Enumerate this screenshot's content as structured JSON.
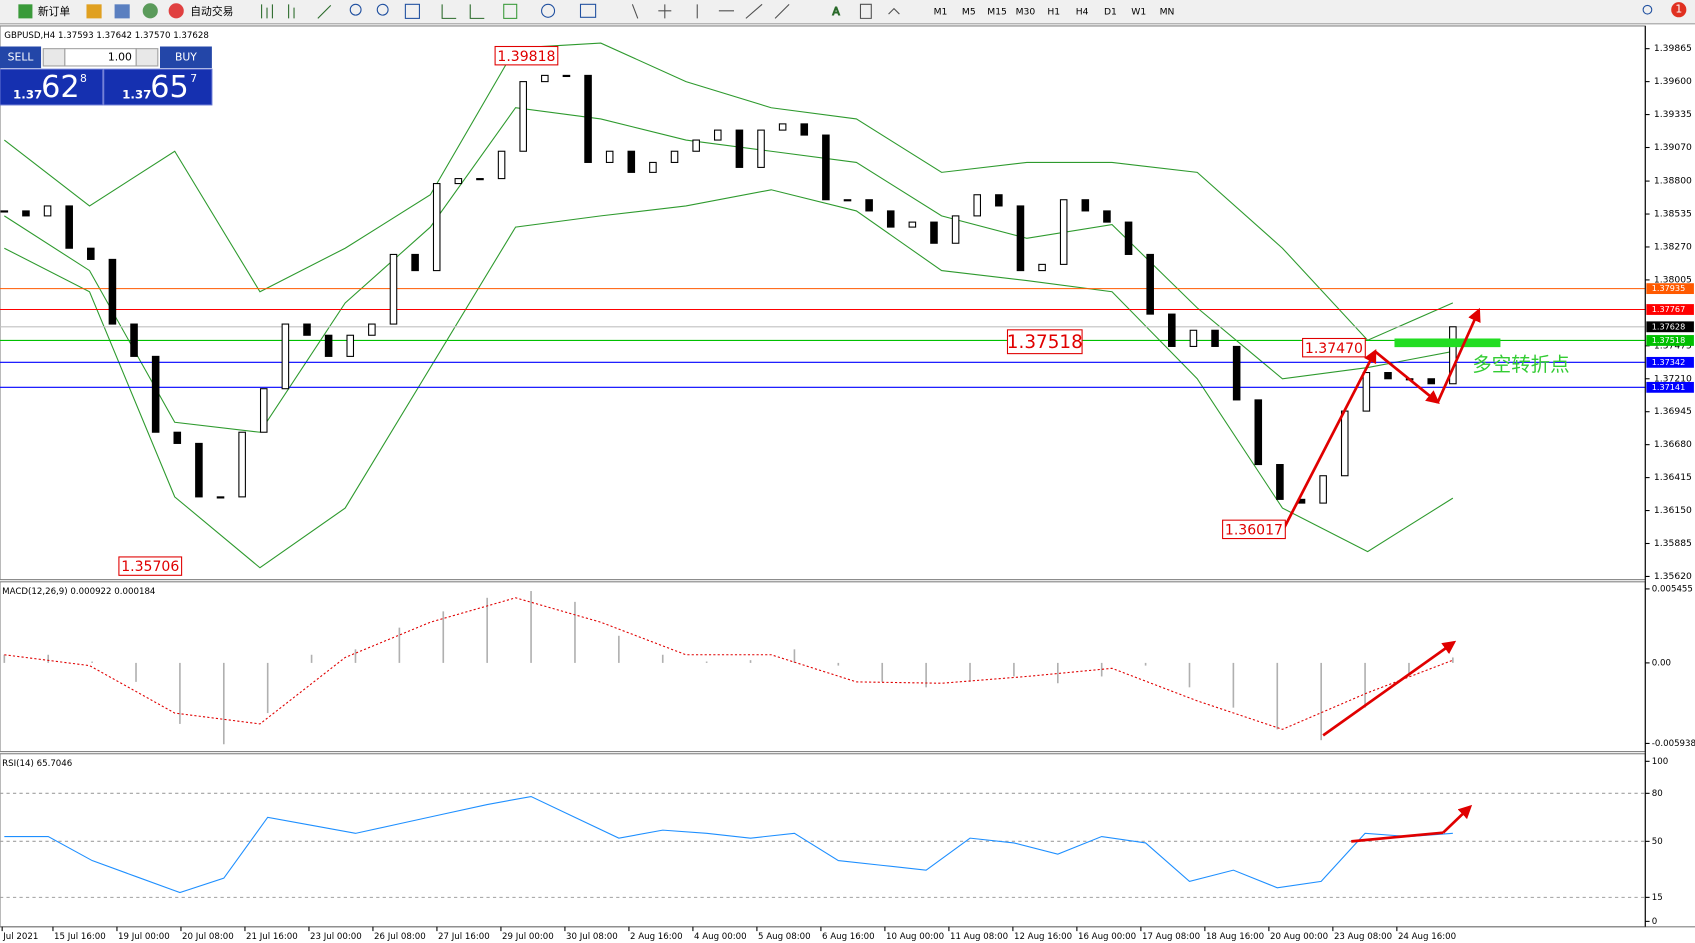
{
  "toolbar": {
    "new_order": "新订单",
    "auto_trading": "自动交易",
    "timeframes": [
      "M1",
      "M5",
      "M15",
      "M30",
      "H1",
      "H4",
      "D1",
      "W1",
      "MN"
    ],
    "badge": "1"
  },
  "trade_panel": {
    "sell": "SELL",
    "buy": "BUY",
    "lot": "1.00",
    "sell_big": "1.37",
    "sell_pips": "62",
    "sell_point": "8",
    "buy_big": "1.37",
    "buy_pips": "65",
    "buy_point": "7"
  },
  "chart_data": {
    "type": "candlestick",
    "title": "GBPUSD,H4  1.37593 1.37642 1.37570 1.37628",
    "close": [
      1.3856,
      1.3852,
      1.386,
      1.3826,
      1.3817,
      1.3765,
      1.3739,
      1.3678,
      1.3669,
      1.3626,
      1.3626,
      1.3678,
      1.3713,
      1.3765,
      1.3756,
      1.3739,
      1.3756,
      1.3765,
      1.3821,
      1.3808,
      1.3878,
      1.3882,
      1.3882,
      1.3904,
      1.396,
      1.3965,
      1.3965,
      1.3895,
      1.3904,
      1.3887,
      1.3895,
      1.3904,
      1.3913,
      1.3921,
      1.3891,
      1.3921,
      1.3926,
      1.3917,
      1.3865,
      1.3865,
      1.3856,
      1.3843,
      1.3847,
      1.383,
      1.3852,
      1.3869,
      1.386,
      1.3808,
      1.3813,
      1.3865,
      1.3856,
      1.3847,
      1.3821,
      1.3773,
      1.3747,
      1.376,
      1.3747,
      1.3704,
      1.3652,
      1.3624,
      1.3621,
      1.3643,
      1.3695,
      1.3726,
      1.3721,
      1.3721,
      1.3717,
      1.37628
    ],
    "up_color": "#ffffff",
    "down_color": "#000000",
    "ylim": [
      1.35603,
      1.40039
    ],
    "yticks": [
      1.39865,
      {
        "value": 1.396,
        "label": "1.39600"
      },
      1.39335,
      {
        "value": 1.3907,
        "label": "1.39070"
      },
      {
        "value": 1.388,
        "label": "1.38800"
      },
      1.38535,
      {
        "value": 1.3827,
        "label": "1.38270"
      },
      1.38005,
      1.37475,
      {
        "value": 1.3721,
        "label": "1.37210"
      },
      1.36945,
      {
        "value": 1.3668,
        "label": "1.36680"
      },
      1.36415,
      {
        "value": 1.3615,
        "label": "1.36150"
      },
      1.35885,
      {
        "value": 1.3562,
        "label": "1.35620"
      }
    ],
    "levels": [
      {
        "value": 1.37935,
        "color": "#ff5a00"
      },
      {
        "value": 1.37767,
        "color": "#ff0000"
      },
      {
        "value": 1.37518,
        "color": "#00c000"
      },
      {
        "value": 1.37342,
        "color": "#0000ff"
      },
      {
        "value": 1.37141,
        "color": "#0000ff"
      }
    ],
    "bid": {
      "value": 1.37628,
      "color": "#c0c0c0"
    },
    "bollinger": {
      "color": "#2e9a2e",
      "upper": [
        1.3913,
        1.386,
        1.3904,
        1.3791,
        1.3826,
        1.3869,
        1.3987,
        1.3991,
        1.396,
        1.3939,
        1.393,
        1.3887,
        1.3895,
        1.3895,
        1.3887,
        1.3826,
        1.3752,
        1.3782
      ],
      "middle": [
        1.3852,
        1.3808,
        1.3686,
        1.3678,
        1.3782,
        1.3843,
        1.3939,
        1.393,
        1.3913,
        1.3904,
        1.3895,
        1.3852,
        1.3834,
        1.3845,
        1.3778,
        1.3721,
        1.373,
        1.3743
      ],
      "lower": [
        1.3826,
        1.3791,
        1.3626,
        1.3569,
        1.3617,
        1.373,
        1.3843,
        1.3852,
        1.386,
        1.3873,
        1.3856,
        1.3808,
        1.38,
        1.3791,
        1.3721,
        1.3617,
        1.3582,
        1.3625
      ]
    },
    "annotations": [
      1.39818,
      1.35706,
      1.37518,
      {
        "value": 1.3747,
        "label": "1.37470"
      },
      1.36017
    ],
    "note": "多空转折点",
    "x_labels": [
      "Jul 2021",
      "15 Jul 16:00",
      "19 Jul 00:00",
      "20 Jul 08:00",
      "21 Jul 16:00",
      "23 Jul 00:00",
      "26 Jul 08:00",
      "27 Jul 16:00",
      "29 Jul 00:00",
      "30 Jul 08:00",
      "2 Aug 16:00",
      "4 Aug 00:00",
      "5 Aug 08:00",
      "6 Aug 16:00",
      "10 Aug 00:00",
      "11 Aug 08:00",
      "12 Aug 16:00",
      "16 Aug 00:00",
      "17 Aug 08:00",
      "18 Aug 16:00",
      "20 Aug 00:00",
      "23 Aug 08:00",
      "24 Aug 16:00"
    ],
    "macd": {
      "title": "MACD(12,26,9) 0.000922 0.000184",
      "ylim": [
        -0.00654,
        0.0059
      ],
      "yticks": [
        0.005455,
        {
          "value": 0,
          "label": "0.00"
        },
        -0.005938
      ],
      "histogram_color": "#b0b0b0",
      "signal_color": "#e00000",
      "histogram": [
        0.0006,
        0.0006,
        0.0001,
        -0.0014,
        -0.0045,
        -0.006,
        -0.0037,
        0.0006,
        0.001,
        0.0026,
        0.0038,
        0.0048,
        0.0053,
        0.0045,
        0.002,
        0.0006,
        0.0001,
        0.0002,
        0.001,
        -0.0002,
        -0.0014,
        -0.0018,
        -0.0014,
        -0.001,
        -0.0015,
        -0.001,
        -0.0002,
        -0.0018,
        -0.0033,
        -0.0049,
        -0.0057,
        -0.0033,
        -0.001,
        0.0004
      ],
      "signal": [
        0.0006,
        -0.0002,
        -0.0037,
        -0.0045,
        0.0004,
        0.003,
        0.0048,
        0.003,
        0.0006,
        0.0006,
        -0.0014,
        -0.0015,
        -0.001,
        -0.0004,
        -0.0028,
        -0.0049,
        -0.0022,
        0.0002
      ]
    },
    "rsi": {
      "title": "RSI(14) 65.7046",
      "ylim": [
        0,
        100
      ],
      "yticks": [
        100,
        80,
        50,
        15,
        0
      ],
      "color": "#1e8fff",
      "values": [
        53,
        53,
        38,
        28,
        18,
        27,
        65,
        60,
        55,
        61,
        67,
        73,
        78,
        65,
        52,
        57,
        55,
        52,
        55,
        38,
        35,
        32,
        52,
        49,
        42,
        53,
        49,
        25,
        32,
        21,
        25,
        55,
        53,
        55
      ]
    }
  }
}
